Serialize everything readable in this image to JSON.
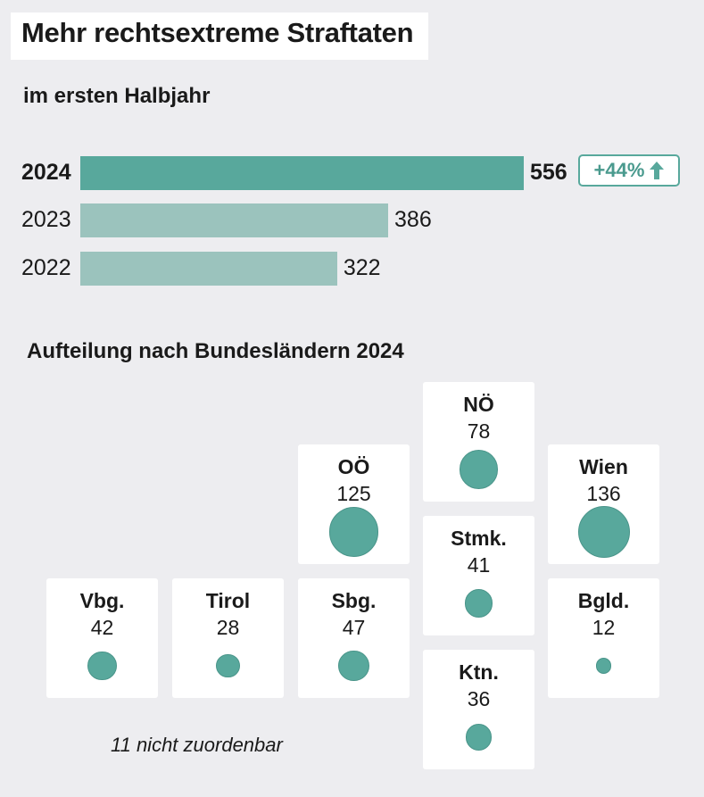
{
  "title": "Mehr rechtsextreme Straftaten",
  "subtitle": "im ersten Halbjahr",
  "colors": {
    "bar_current": "#58a89c",
    "bar_previous": "#9bc3bd",
    "bubble": "#58a89c"
  },
  "change_badge": {
    "label": "+44%",
    "icon": "arrow-up-icon"
  },
  "section_title": "Aufteilung nach Bundesländern 2024",
  "footnote": "11 nicht zuordenbar",
  "chart_data": [
    {
      "type": "bar",
      "orientation": "horizontal",
      "categories": [
        "2024",
        "2023",
        "2022"
      ],
      "values": [
        556,
        386,
        322
      ],
      "value_labels": [
        "556",
        "386",
        "322"
      ],
      "highlight": "2024"
    },
    {
      "type": "bubble-tile-map",
      "regions": [
        {
          "name": "NÖ",
          "value": 78,
          "value_label": "78"
        },
        {
          "name": "OÖ",
          "value": 125,
          "value_label": "125"
        },
        {
          "name": "Wien",
          "value": 136,
          "value_label": "136"
        },
        {
          "name": "Stmk.",
          "value": 41,
          "value_label": "41"
        },
        {
          "name": "Vbg.",
          "value": 42,
          "value_label": "42"
        },
        {
          "name": "Tirol",
          "value": 28,
          "value_label": "28"
        },
        {
          "name": "Sbg.",
          "value": 47,
          "value_label": "47"
        },
        {
          "name": "Bgld.",
          "value": 12,
          "value_label": "12"
        },
        {
          "name": "Ktn.",
          "value": 36,
          "value_label": "36"
        }
      ]
    }
  ]
}
